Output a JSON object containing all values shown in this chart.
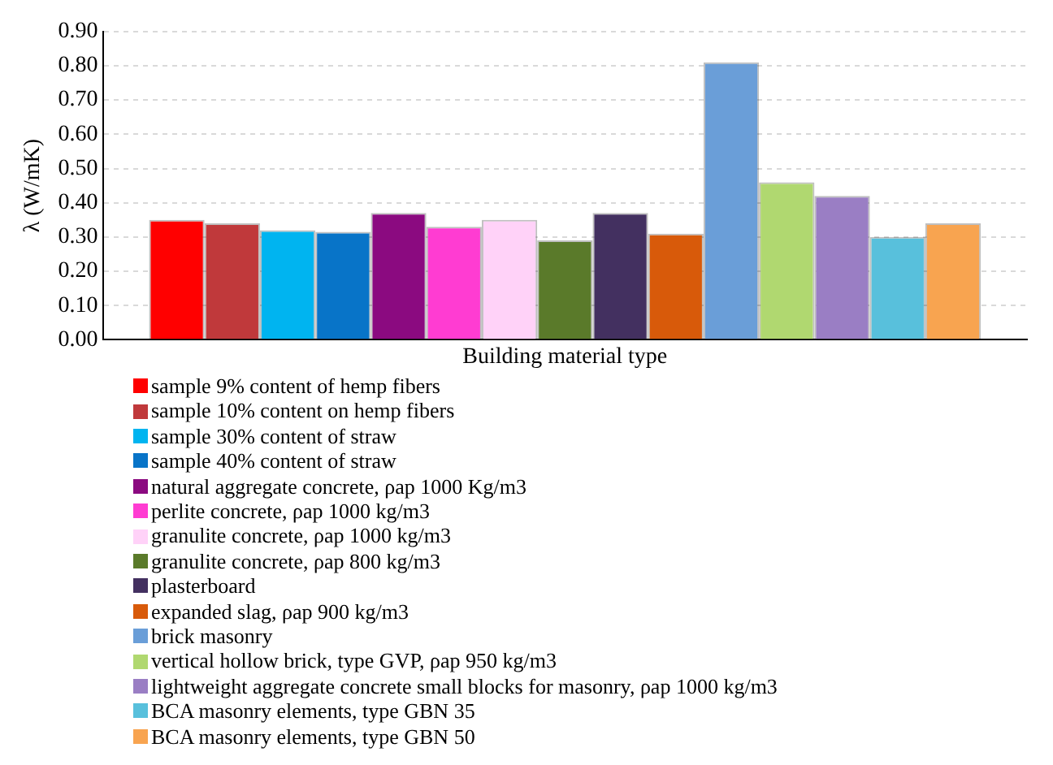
{
  "chart_data": {
    "type": "bar",
    "xlabel": "Building material type",
    "ylabel": "λ (W/mK)",
    "categories": [
      null
    ],
    "ylim": [
      0,
      0.9
    ],
    "yticks": [
      {
        "value": 0,
        "label": "0.00"
      },
      {
        "value": 0.1,
        "label": "0.10"
      },
      {
        "value": 0.2,
        "label": "0.20"
      },
      {
        "value": 0.3,
        "label": "0.30"
      },
      {
        "value": 0.4,
        "label": "0.40"
      },
      {
        "value": 0.5,
        "label": "0.50"
      },
      {
        "value": 0.6,
        "label": "0.60"
      },
      {
        "value": 0.7,
        "label": "0.70"
      },
      {
        "value": 0.8,
        "label": "0.80"
      },
      {
        "value": 0.9,
        "label": "0.90"
      }
    ],
    "grid": "y",
    "legend": "bottom",
    "series": [
      {
        "name": "sample 9% content of hemp fibers",
        "color": "#ff0000",
        "values": [
          0.35
        ]
      },
      {
        "name": "sample 10% content on hemp fibers",
        "color": "#c0393b",
        "values": [
          0.34
        ]
      },
      {
        "name": "sample 30% content of straw",
        "color": "#00b4f0",
        "values": [
          0.32
        ]
      },
      {
        "name": "sample 40% content of straw",
        "color": "#0874c8",
        "values": [
          0.315
        ]
      },
      {
        "name": "natural aggregate concrete, ρap 1000 Kg/m3",
        "color": "#8b0a80",
        "values": [
          0.37
        ]
      },
      {
        "name": "perlite concrete, ρap 1000 kg/m3",
        "color": "#ff3cd2",
        "values": [
          0.33
        ]
      },
      {
        "name": "granulite concrete, ρap 1000 kg/m3",
        "color": "#ffd2f8",
        "values": [
          0.35
        ]
      },
      {
        "name": "granulite concrete, ρap 800 kg/m3",
        "color": "#5a7a2a",
        "values": [
          0.29
        ]
      },
      {
        "name": "plasterboard",
        "color": "#433060",
        "values": [
          0.37
        ]
      },
      {
        "name": "expanded slag, ρap 900 kg/m3",
        "color": "#d85a0a",
        "values": [
          0.31
        ]
      },
      {
        "name": "brick masonry",
        "color": "#6a9ed8",
        "values": [
          0.81
        ]
      },
      {
        "name": "vertical hollow brick, type GVP, ρap  950 kg/m3",
        "color": "#b0d870",
        "values": [
          0.46
        ]
      },
      {
        "name": "lightweight aggregate concrete small blocks for masonry, ρap  1000 kg/m3",
        "color": "#9a7ec4",
        "values": [
          0.42
        ]
      },
      {
        "name": "BCA masonry elements, type GBN 35",
        "color": "#58c0dc",
        "values": [
          0.3
        ]
      },
      {
        "name": "BCA masonry elements, type GBN 50",
        "color": "#f8a450",
        "values": [
          0.34
        ]
      }
    ]
  }
}
